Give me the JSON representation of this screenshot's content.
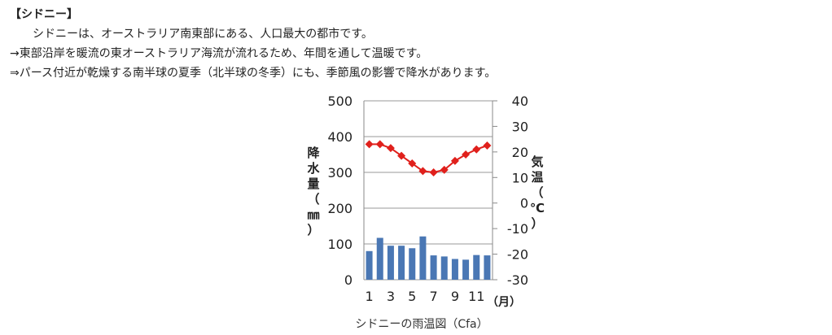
{
  "article": {
    "heading": "【シドニー】",
    "lines": [
      "シドニーは、オーストラリア南東部にある、人口最大の都市です。",
      "→東部沿岸を暖流の東オーストラリア海流が流れるため、年間を通して温暖です。",
      "⇒パース付近が乾燥する南半球の夏季（北半球の冬季）にも、季節風の影響で降水があります。"
    ]
  },
  "chart_data": {
    "type": "bar+line",
    "caption": "シドニーの雨温図（Cfa）",
    "categories": [
      "1",
      "2",
      "3",
      "4",
      "5",
      "6",
      "7",
      "8",
      "9",
      "10",
      "11",
      "12"
    ],
    "x_tick_labels": [
      "1",
      "3",
      "5",
      "7",
      "9",
      "11"
    ],
    "x_unit": "（月）",
    "left_axis": {
      "label_chars": [
        "降",
        "水",
        "量",
        "（",
        "㎜",
        "）"
      ],
      "ylim": [
        0,
        500
      ],
      "ticks": [
        "0",
        "100",
        "200",
        "300",
        "400",
        "500"
      ]
    },
    "right_axis": {
      "label_chars": [
        "気",
        "温",
        "（",
        "℃",
        "）"
      ],
      "ylim": [
        -30,
        40
      ],
      "ticks": [
        "-30",
        "-20",
        "-10",
        "0",
        "10",
        "20",
        "30",
        "40"
      ]
    },
    "series": [
      {
        "kind": "bar",
        "axis": "left",
        "color": "#4a77b4",
        "values": [
          80,
          117,
          95,
          95,
          88,
          121,
          68,
          65,
          58,
          56,
          69,
          68
        ]
      },
      {
        "kind": "line",
        "axis": "right",
        "color": "#e0201c",
        "values": [
          23,
          23,
          21.5,
          18.5,
          15.5,
          12.5,
          12,
          13,
          16.5,
          19,
          21,
          22.5
        ]
      }
    ],
    "grid": true
  }
}
